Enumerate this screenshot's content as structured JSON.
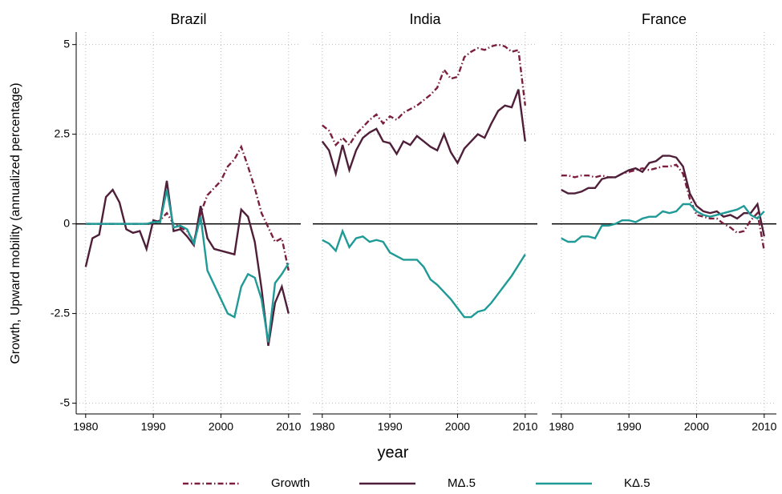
{
  "ylabel": "Growth, Upward mobility (annualized percentage)",
  "xlabel": "year",
  "chart_data": [
    {
      "type": "line",
      "title": "Brazil",
      "grid": true,
      "hline": 0,
      "x": [
        1980,
        1981,
        1982,
        1983,
        1984,
        1985,
        1986,
        1987,
        1988,
        1989,
        1990,
        1991,
        1992,
        1993,
        1994,
        1995,
        1996,
        1997,
        1998,
        1999,
        2000,
        2001,
        2002,
        2003,
        2004,
        2005,
        2006,
        2007,
        2008,
        2009,
        2010
      ],
      "xlim": [
        1978.6,
        2011.8
      ],
      "xticks": [
        1980,
        1990,
        2000,
        2010
      ],
      "ylim": [
        -5.3,
        5.35
      ],
      "yticks": [
        -5,
        -2.5,
        0,
        2.5,
        5
      ],
      "series": [
        {
          "name": "Growth",
          "color": "#7a1f3d",
          "style": "dashdot",
          "values": [
            0,
            0,
            0,
            0,
            0,
            0,
            0,
            0,
            0,
            0,
            0,
            0.1,
            0.3,
            0,
            -0.1,
            -0.2,
            -0.5,
            0.3,
            0.8,
            1.0,
            1.2,
            1.6,
            1.8,
            2.15,
            1.6,
            1.0,
            0.3,
            -0.1,
            -0.5,
            -0.4,
            -1.3
          ]
        },
        {
          "name": "MΔ.5",
          "color": "#4f1f3a",
          "style": "solid",
          "values": [
            -1.2,
            -0.4,
            -0.3,
            0.75,
            0.95,
            0.6,
            -0.15,
            -0.25,
            -0.2,
            -0.7,
            0.1,
            0.05,
            1.2,
            -0.2,
            -0.15,
            -0.35,
            -0.6,
            0.5,
            -0.4,
            -0.7,
            -0.75,
            -0.8,
            -0.85,
            0.4,
            0.2,
            -0.5,
            -1.8,
            -3.4,
            -2.2,
            -1.75,
            -2.5
          ]
        },
        {
          "name": "KΔ.5",
          "color": "#1f9a96",
          "style": "solid",
          "values": [
            0,
            0,
            0,
            0,
            0,
            0,
            0,
            0,
            0,
            0,
            0.05,
            0.05,
            0.95,
            -0.1,
            -0.05,
            -0.15,
            -0.55,
            0.2,
            -1.3,
            -1.7,
            -2.1,
            -2.5,
            -2.6,
            -1.75,
            -1.4,
            -1.5,
            -2.1,
            -3.3,
            -1.65,
            -1.4,
            -1.1
          ]
        }
      ]
    },
    {
      "type": "line",
      "title": "India",
      "grid": true,
      "hline": 0,
      "x": [
        1980,
        1981,
        1982,
        1983,
        1984,
        1985,
        1986,
        1987,
        1988,
        1989,
        1990,
        1991,
        1992,
        1993,
        1994,
        1995,
        1996,
        1997,
        1998,
        1999,
        2000,
        2001,
        2002,
        2003,
        2004,
        2005,
        2006,
        2007,
        2008,
        2009,
        2010
      ],
      "xlim": [
        1978.6,
        2011.8
      ],
      "xticks": [
        1980,
        1990,
        2000,
        2010
      ],
      "ylim": [
        -5.3,
        5.35
      ],
      "yticks": [
        -5,
        -2.5,
        0,
        2.5,
        5
      ],
      "series": [
        {
          "name": "Growth",
          "color": "#7a1f3d",
          "style": "dashdot",
          "values": [
            2.75,
            2.6,
            2.2,
            2.4,
            2.2,
            2.5,
            2.7,
            2.9,
            3.05,
            2.8,
            3.0,
            2.9,
            3.1,
            3.2,
            3.3,
            3.45,
            3.6,
            3.8,
            4.3,
            4.05,
            4.1,
            4.65,
            4.8,
            4.9,
            4.85,
            4.95,
            5.0,
            4.95,
            4.8,
            4.85,
            3.3
          ]
        },
        {
          "name": "MΔ.5",
          "color": "#4f1f3a",
          "style": "solid",
          "values": [
            2.3,
            2.05,
            1.4,
            2.2,
            1.5,
            2.05,
            2.4,
            2.55,
            2.65,
            2.3,
            2.25,
            1.95,
            2.3,
            2.2,
            2.45,
            2.3,
            2.15,
            2.05,
            2.5,
            2.0,
            1.7,
            2.1,
            2.3,
            2.5,
            2.4,
            2.8,
            3.15,
            3.3,
            3.25,
            3.75,
            2.3
          ]
        },
        {
          "name": "KΔ.5",
          "color": "#1f9a96",
          "style": "solid",
          "values": [
            -0.45,
            -0.55,
            -0.75,
            -0.2,
            -0.65,
            -0.4,
            -0.35,
            -0.5,
            -0.45,
            -0.5,
            -0.8,
            -0.9,
            -1.0,
            -1.0,
            -1.0,
            -1.2,
            -1.55,
            -1.7,
            -1.9,
            -2.1,
            -2.35,
            -2.6,
            -2.6,
            -2.45,
            -2.4,
            -2.2,
            -1.95,
            -1.7,
            -1.45,
            -1.15,
            -0.85
          ]
        }
      ]
    },
    {
      "type": "line",
      "title": "France",
      "grid": true,
      "hline": 0,
      "x": [
        1980,
        1981,
        1982,
        1983,
        1984,
        1985,
        1986,
        1987,
        1988,
        1989,
        1990,
        1991,
        1992,
        1993,
        1994,
        1995,
        1996,
        1997,
        1998,
        1999,
        2000,
        2001,
        2002,
        2003,
        2004,
        2005,
        2006,
        2007,
        2008,
        2009,
        2010
      ],
      "xlim": [
        1978.6,
        2011.8
      ],
      "xticks": [
        1980,
        1990,
        2000,
        2010
      ],
      "ylim": [
        -5.3,
        5.35
      ],
      "yticks": [
        -5,
        -2.5,
        0,
        2.5,
        5
      ],
      "series": [
        {
          "name": "Growth",
          "color": "#7a1f3d",
          "style": "dashdot",
          "values": [
            1.35,
            1.35,
            1.3,
            1.35,
            1.35,
            1.3,
            1.35,
            1.3,
            1.3,
            1.4,
            1.45,
            1.5,
            1.55,
            1.5,
            1.55,
            1.6,
            1.6,
            1.65,
            1.4,
            0.7,
            0.25,
            0.2,
            0.15,
            0.15,
            0.0,
            -0.1,
            -0.25,
            -0.2,
            0.1,
            0.3,
            -0.75
          ]
        },
        {
          "name": "MΔ.5",
          "color": "#4f1f3a",
          "style": "solid",
          "values": [
            0.95,
            0.85,
            0.85,
            0.9,
            1.0,
            1.0,
            1.25,
            1.3,
            1.3,
            1.4,
            1.5,
            1.55,
            1.45,
            1.7,
            1.75,
            1.9,
            1.9,
            1.85,
            1.6,
            0.85,
            0.5,
            0.35,
            0.3,
            0.35,
            0.2,
            0.25,
            0.15,
            0.3,
            0.3,
            0.55,
            -0.35
          ]
        },
        {
          "name": "KΔ.5",
          "color": "#1f9a96",
          "style": "solid",
          "values": [
            -0.4,
            -0.5,
            -0.5,
            -0.35,
            -0.35,
            -0.4,
            -0.05,
            -0.05,
            0.0,
            0.1,
            0.1,
            0.05,
            0.15,
            0.2,
            0.2,
            0.35,
            0.3,
            0.35,
            0.55,
            0.55,
            0.35,
            0.25,
            0.2,
            0.25,
            0.3,
            0.35,
            0.4,
            0.5,
            0.25,
            0.15,
            0.35
          ]
        }
      ]
    }
  ]
}
